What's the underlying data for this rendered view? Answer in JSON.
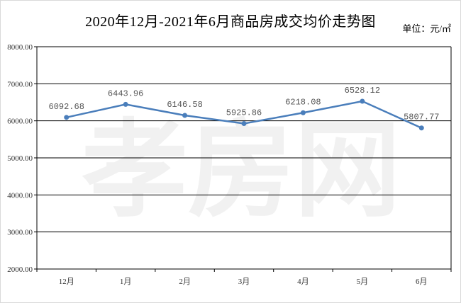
{
  "title": "2020年12月-2021年6月商品房成交均价走势图",
  "unit": "单位：元/㎡",
  "watermark": "孝房网",
  "chart_data": {
    "type": "line",
    "title": "2020年12月-2021年6月商品房成交均价走势图",
    "categories": [
      "12月",
      "1月",
      "2月",
      "3月",
      "4月",
      "5月",
      "6月"
    ],
    "values": [
      6092.68,
      6443.96,
      6146.58,
      5925.86,
      6218.08,
      6528.12,
      5807.77
    ],
    "data_labels": [
      "6092.68",
      "6443.96",
      "6146.58",
      "5925.86",
      "6218.08",
      "6528.12",
      "5807.77"
    ],
    "ylim": [
      2000,
      8000
    ],
    "yticks": [
      "2000.00",
      "3000.00",
      "4000.00",
      "5000.00",
      "6000.00",
      "7000.00",
      "8000.00"
    ],
    "grid": true,
    "legend": "none",
    "line_color": "#4a7ebb",
    "grid_color": "#000000"
  }
}
